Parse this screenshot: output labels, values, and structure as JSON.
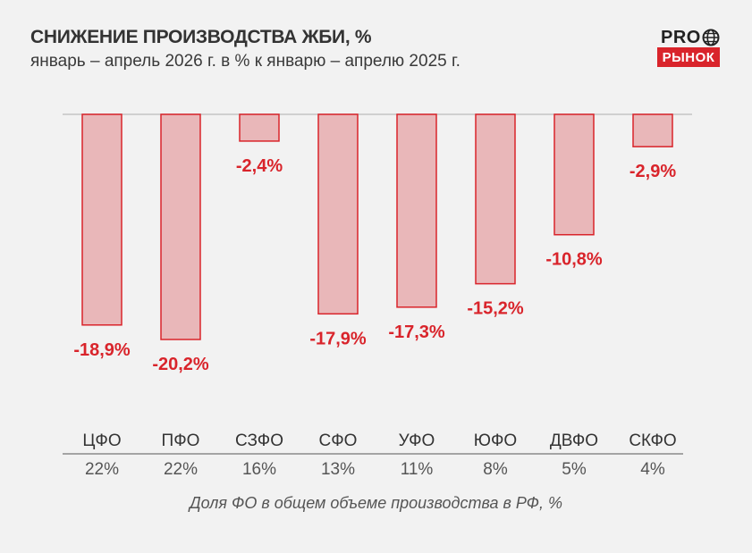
{
  "header": {
    "title": "СНИЖЕНИЕ ПРОИЗВОДСТВА ЖБИ, %",
    "subtitle": "январь – апрель 2026 г. в % к январю – апрелю 2025 г."
  },
  "logo": {
    "top_text": "PRO",
    "bottom_text": "РЫНОК",
    "globe_icon": "globe-icon",
    "brand_color": "#d9242b"
  },
  "chart_data": {
    "type": "bar",
    "title": "СНИЖЕНИЕ ПРОИЗВОДСТВА ЖБИ, %",
    "subtitle": "январь – апрель 2026 г. в % к январю – апрелю 2025 г.",
    "categories": [
      "ЦФО",
      "ПФО",
      "СЗФО",
      "СФО",
      "УФО",
      "ЮФО",
      "ДВФО",
      "СКФО"
    ],
    "values": [
      -18.9,
      -20.2,
      -2.4,
      -17.9,
      -17.3,
      -15.2,
      -10.8,
      -2.9
    ],
    "value_labels": [
      "-18,9%",
      "-20,2%",
      "-2,4%",
      "-17,9%",
      "-17,3%",
      "-15,2%",
      "-10,8%",
      "-2,9%"
    ],
    "shares": [
      "22%",
      "22%",
      "16%",
      "13%",
      "11%",
      "8%",
      "5%",
      "4%"
    ],
    "share_caption": "Доля ФО в общем объеме производства в РФ, %",
    "ylim": [
      -20.2,
      0
    ],
    "grid": false,
    "colors": {
      "bar_fill": "#e9b7b9",
      "bar_stroke": "#d9242b",
      "label": "#d9242b",
      "baseline": "#d0d0d0"
    }
  }
}
